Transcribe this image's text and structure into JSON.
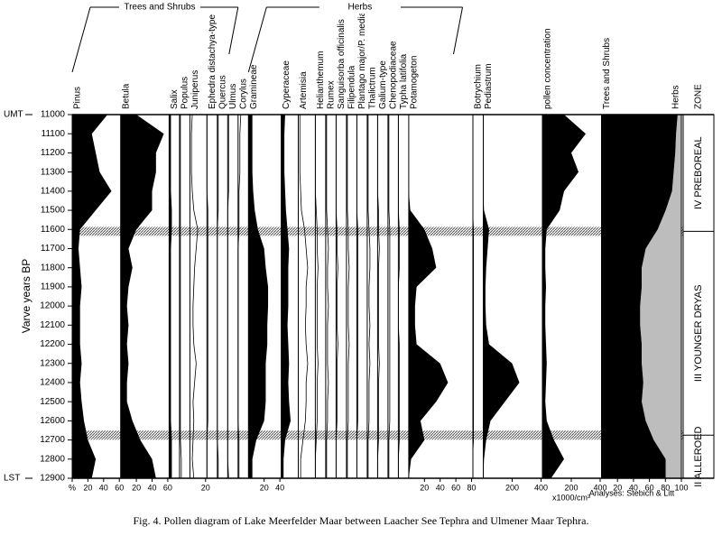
{
  "chart_data": {
    "type": "pollen-diagram",
    "ylabel": "Varve years BP",
    "ylim": [
      11000,
      12900
    ],
    "yticks": [
      11000,
      11100,
      11200,
      11300,
      11400,
      11500,
      11600,
      11700,
      11800,
      11900,
      12000,
      12100,
      12200,
      12300,
      12400,
      12500,
      12600,
      12700,
      12800,
      12900
    ],
    "markers": [
      {
        "value": 11000,
        "label": "UMT"
      },
      {
        "value": 12900,
        "label": "LST"
      }
    ],
    "ages": [
      11000,
      11100,
      11200,
      11300,
      11400,
      11500,
      11600,
      11700,
      11800,
      11900,
      12000,
      12100,
      12200,
      12300,
      12400,
      12500,
      12600,
      12700,
      12800,
      12900
    ],
    "tephra_layers": [
      11610,
      12675
    ],
    "groups": [
      {
        "name": "Trees and Shrubs",
        "series": [
          {
            "name": "Pinus",
            "style": "silhouette",
            "xlim": [
              0,
              60
            ],
            "xticks": [
              {
                "value": 0,
                "label": "%"
              },
              20,
              40,
              60
            ],
            "values": [
              45,
              25,
              30,
              35,
              50,
              30,
              10,
              8,
              10,
              12,
              10,
              10,
              10,
              12,
              10,
              12,
              15,
              20,
              30,
              25
            ]
          },
          {
            "name": "Betula",
            "style": "silhouette",
            "xlim": [
              0,
              60
            ],
            "xticks": [
              20,
              40,
              60
            ],
            "values": [
              20,
              55,
              45,
              45,
              40,
              40,
              20,
              10,
              15,
              10,
              8,
              10,
              8,
              10,
              8,
              8,
              15,
              25,
              40,
              45
            ]
          },
          {
            "name": "Salix",
            "style": "silhouette",
            "xlim": [
              0,
              10
            ],
            "values": [
              2,
              2,
              2,
              2,
              2,
              3,
              3,
              2,
              2,
              2,
              2,
              2,
              2,
              2,
              2,
              2,
              2,
              3,
              3,
              3
            ]
          },
          {
            "name": "Populus",
            "style": "curve",
            "xlim": [
              0,
              10
            ],
            "values": [
              1,
              1,
              1,
              1,
              1,
              1,
              1,
              1,
              1,
              1,
              1,
              1,
              1,
              1,
              1,
              1,
              1,
              1,
              2,
              2
            ]
          },
          {
            "name": "Juniperus",
            "style": "curve",
            "xlim": [
              0,
              20
            ],
            "xticks": [
              20
            ],
            "values": [
              3,
              2,
              2,
              2,
              3,
              5,
              10,
              8,
              6,
              5,
              4,
              4,
              5,
              8,
              6,
              4,
              5,
              4,
              3,
              5
            ]
          },
          {
            "name": "Ephedra distachya-type",
            "style": "curve",
            "xlim": [
              0,
              10
            ],
            "values": [
              0,
              0,
              0,
              0,
              0,
              1,
              1,
              1,
              1,
              1,
              1,
              1,
              1,
              1,
              1,
              1,
              1,
              0,
              0,
              0
            ]
          },
          {
            "name": "Quercus",
            "style": "curve",
            "xlim": [
              0,
              10
            ],
            "values": [
              1,
              1,
              1,
              1,
              1,
              1,
              0,
              0,
              0,
              0,
              0,
              0,
              0,
              0,
              0,
              0,
              0,
              0,
              1,
              1
            ]
          },
          {
            "name": "Ulmus",
            "style": "curve",
            "xlim": [
              0,
              10
            ],
            "values": [
              1,
              1,
              1,
              1,
              1,
              0,
              0,
              0,
              0,
              0,
              0,
              0,
              0,
              0,
              0,
              0,
              0,
              0,
              0,
              1
            ]
          },
          {
            "name": "Corylus",
            "style": "curve",
            "xlim": [
              0,
              10
            ],
            "values": [
              3,
              2,
              2,
              2,
              1,
              1,
              1,
              0,
              0,
              0,
              0,
              0,
              0,
              0,
              0,
              0,
              0,
              1,
              1,
              1
            ]
          }
        ]
      },
      {
        "name": "Herbs",
        "series": [
          {
            "name": "Gramineae",
            "style": "silhouette",
            "xlim": [
              0,
              40
            ],
            "xticks": [
              20,
              40
            ],
            "values": [
              5,
              5,
              5,
              5,
              6,
              8,
              12,
              20,
              22,
              25,
              25,
              24,
              24,
              22,
              22,
              22,
              20,
              10,
              5,
              5
            ]
          },
          {
            "name": "Cyperaceae",
            "style": "silhouette",
            "xlim": [
              0,
              20
            ],
            "values": [
              5,
              4,
              4,
              4,
              5,
              6,
              8,
              10,
              9,
              9,
              9,
              8,
              9,
              10,
              9,
              10,
              12,
              5,
              3,
              3
            ]
          },
          {
            "name": "Artemisia",
            "style": "curve",
            "xlim": [
              0,
              20
            ],
            "values": [
              2,
              2,
              2,
              2,
              3,
              4,
              8,
              10,
              12,
              10,
              10,
              9,
              10,
              12,
              10,
              10,
              9,
              6,
              3,
              3
            ]
          },
          {
            "name": "Helianthemum",
            "style": "curve",
            "xlim": [
              0,
              10
            ],
            "values": [
              0,
              0,
              0,
              0,
              0,
              1,
              2,
              2,
              3,
              2,
              2,
              2,
              2,
              3,
              2,
              2,
              2,
              1,
              0,
              0
            ]
          },
          {
            "name": "Rumex",
            "style": "curve",
            "xlim": [
              0,
              10
            ],
            "values": [
              1,
              1,
              1,
              1,
              1,
              1,
              2,
              3,
              2,
              2,
              3,
              2,
              2,
              2,
              3,
              2,
              2,
              1,
              1,
              1
            ]
          },
          {
            "name": "Sanguisorba officinalis",
            "style": "curve",
            "xlim": [
              0,
              10
            ],
            "values": [
              0,
              0,
              0,
              0,
              0,
              0,
              1,
              1,
              2,
              1,
              1,
              1,
              2,
              1,
              1,
              1,
              1,
              0,
              0,
              0
            ]
          },
          {
            "name": "Filipendula",
            "style": "curve",
            "xlim": [
              0,
              10
            ],
            "values": [
              1,
              1,
              1,
              1,
              1,
              1,
              2,
              2,
              3,
              2,
              2,
              2,
              3,
              2,
              2,
              2,
              2,
              1,
              1,
              1
            ]
          },
          {
            "name": "Plantago major/P. media",
            "style": "curve",
            "xlim": [
              0,
              10
            ],
            "values": [
              0,
              0,
              0,
              0,
              0,
              0,
              1,
              1,
              1,
              1,
              1,
              1,
              1,
              1,
              1,
              1,
              1,
              0,
              0,
              0
            ]
          },
          {
            "name": "Thalictrum",
            "style": "curve",
            "xlim": [
              0,
              10
            ],
            "values": [
              1,
              1,
              1,
              1,
              1,
              1,
              2,
              3,
              3,
              2,
              2,
              3,
              2,
              3,
              2,
              2,
              2,
              1,
              1,
              1
            ]
          },
          {
            "name": "Galium-type",
            "style": "curve",
            "xlim": [
              0,
              10
            ],
            "values": [
              0,
              0,
              0,
              0,
              0,
              1,
              1,
              2,
              1,
              1,
              1,
              1,
              1,
              2,
              1,
              1,
              1,
              1,
              0,
              0
            ]
          },
          {
            "name": "Chenopodiaceae",
            "style": "curve",
            "xlim": [
              0,
              10
            ],
            "values": [
              1,
              1,
              1,
              1,
              1,
              1,
              2,
              2,
              2,
              2,
              2,
              2,
              2,
              2,
              2,
              2,
              2,
              1,
              1,
              1
            ]
          },
          {
            "name": "Typha latifolia",
            "style": "curve",
            "xlim": [
              0,
              10
            ],
            "values": [
              0,
              0,
              0,
              0,
              0,
              0,
              1,
              1,
              1,
              0,
              0,
              0,
              1,
              1,
              1,
              1,
              1,
              1,
              0,
              0
            ]
          },
          {
            "name": "Potamogeton",
            "style": "silhouette",
            "xlim": [
              0,
              80
            ],
            "xticks": [
              20,
              40,
              60,
              80
            ],
            "values": [
              0,
              0,
              0,
              0,
              0,
              2,
              20,
              30,
              35,
              10,
              8,
              8,
              10,
              40,
              50,
              35,
              15,
              20,
              3,
              0
            ]
          }
        ]
      }
    ],
    "series": [
      {
        "name": "Botrychium",
        "style": "silhouette",
        "xlim": [
          0,
          10
        ],
        "values": [
          0,
          0,
          0,
          0,
          0,
          0,
          1,
          1,
          1,
          1,
          1,
          1,
          1,
          1,
          1,
          1,
          1,
          1,
          0,
          0
        ]
      },
      {
        "name": "Pediastrum",
        "style": "silhouette",
        "xlim": [
          0,
          400
        ],
        "xticks": [
          200,
          400
        ],
        "values": [
          0,
          0,
          0,
          0,
          0,
          5,
          40,
          30,
          20,
          15,
          15,
          20,
          40,
          200,
          250,
          150,
          50,
          20,
          5,
          0
        ]
      },
      {
        "name": "pollen concentration",
        "style": "silhouette",
        "xlim": [
          0,
          400
        ],
        "xticks": [
          200,
          400
        ],
        "xlabel": "x1000/cm³",
        "values": [
          150,
          300,
          200,
          250,
          150,
          120,
          30,
          20,
          20,
          25,
          20,
          20,
          25,
          30,
          25,
          20,
          30,
          80,
          150,
          60
        ]
      }
    ],
    "summary": {
      "xlim": [
        0,
        100
      ],
      "xticks": [
        20,
        40,
        60,
        80,
        100
      ],
      "series": [
        {
          "name": "Trees and Shrubs",
          "color": "#000000",
          "values": [
            95,
            93,
            92,
            90,
            88,
            80,
            70,
            55,
            50,
            50,
            48,
            48,
            50,
            50,
            52,
            50,
            55,
            65,
            80,
            80
          ]
        },
        {
          "name": "Herbs",
          "color": "#bdbdbd",
          "values": [
            5,
            7,
            8,
            10,
            12,
            20,
            30,
            45,
            50,
            50,
            52,
            52,
            50,
            50,
            48,
            50,
            45,
            35,
            20,
            20
          ]
        }
      ]
    },
    "zone_title": "ZONE",
    "zones": [
      {
        "label": "IV PREBOREAL",
        "from": 11000,
        "to": 11610
      },
      {
        "label": "III YOUNGER DRYAS",
        "from": 11610,
        "to": 12675
      },
      {
        "label": "II ALLEROED",
        "from": 12675,
        "to": 12900
      }
    ],
    "credit": "Analyses: Stebich & Litt",
    "caption": "Fig. 4. Pollen diagram of Lake Meerfelder Maar between Laacher See Tephra and Ulmener Maar Tephra."
  }
}
